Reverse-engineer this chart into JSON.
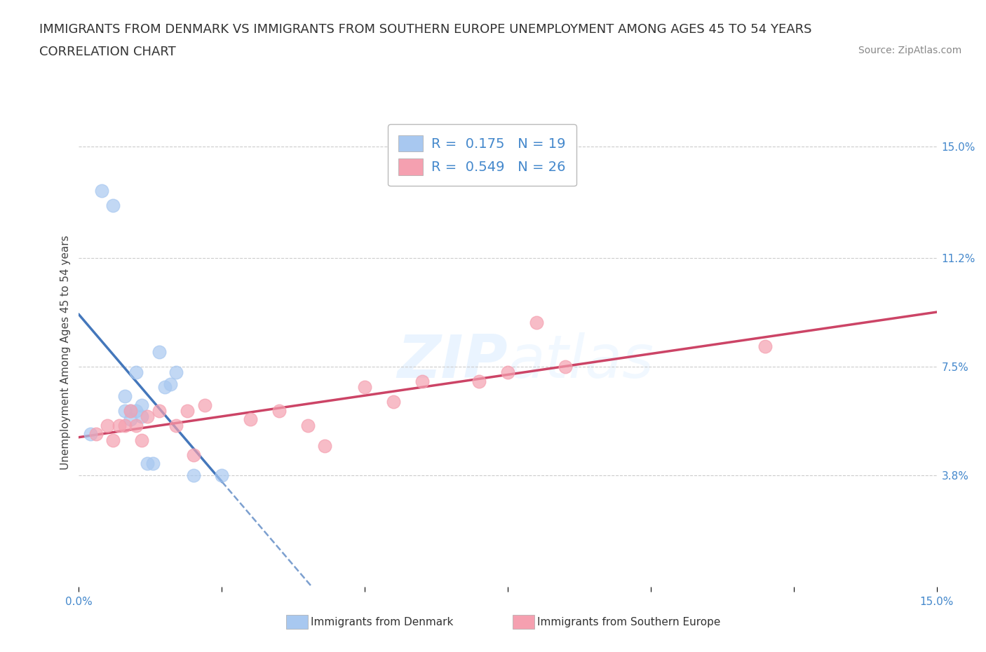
{
  "title_line1": "IMMIGRANTS FROM DENMARK VS IMMIGRANTS FROM SOUTHERN EUROPE UNEMPLOYMENT AMONG AGES 45 TO 54 YEARS",
  "title_line2": "CORRELATION CHART",
  "source": "Source: ZipAtlas.com",
  "ylabel": "Unemployment Among Ages 45 to 54 years",
  "xlim": [
    0,
    0.15
  ],
  "ylim": [
    0,
    0.16
  ],
  "x_ticks": [
    0.0,
    0.025,
    0.05,
    0.075,
    0.1,
    0.125,
    0.15
  ],
  "y_tick_labels_right": [
    "3.8%",
    "7.5%",
    "11.2%",
    "15.0%"
  ],
  "y_tick_vals_right": [
    0.038,
    0.075,
    0.112,
    0.15
  ],
  "legend_entries": [
    {
      "label": "Immigrants from Denmark",
      "R": "0.175",
      "N": "19",
      "color": "#a8c8f0"
    },
    {
      "label": "Immigrants from Southern Europe",
      "R": "0.549",
      "N": "26",
      "color": "#f5a0b0"
    }
  ],
  "denmark_x": [
    0.002,
    0.004,
    0.006,
    0.008,
    0.008,
    0.009,
    0.009,
    0.01,
    0.01,
    0.011,
    0.011,
    0.012,
    0.013,
    0.014,
    0.015,
    0.016,
    0.017,
    0.02,
    0.025
  ],
  "denmark_y": [
    0.052,
    0.135,
    0.13,
    0.06,
    0.065,
    0.057,
    0.06,
    0.06,
    0.073,
    0.062,
    0.058,
    0.042,
    0.042,
    0.08,
    0.068,
    0.069,
    0.073,
    0.038,
    0.038
  ],
  "southern_x": [
    0.003,
    0.005,
    0.006,
    0.007,
    0.008,
    0.009,
    0.01,
    0.011,
    0.012,
    0.014,
    0.017,
    0.019,
    0.02,
    0.022,
    0.03,
    0.035,
    0.04,
    0.043,
    0.05,
    0.055,
    0.06,
    0.07,
    0.075,
    0.08,
    0.085,
    0.12
  ],
  "southern_y": [
    0.052,
    0.055,
    0.05,
    0.055,
    0.055,
    0.06,
    0.055,
    0.05,
    0.058,
    0.06,
    0.055,
    0.06,
    0.045,
    0.062,
    0.057,
    0.06,
    0.055,
    0.048,
    0.068,
    0.063,
    0.07,
    0.07,
    0.073,
    0.09,
    0.075,
    0.082
  ],
  "background_color": "#ffffff",
  "grid_color": "#cccccc",
  "denmark_dot_color": "#a8c8f0",
  "southern_dot_color": "#f5a0b0",
  "denmark_line_color": "#4477bb",
  "southern_line_color": "#cc4466",
  "title_fontsize": 13,
  "axis_label_fontsize": 11,
  "tick_fontsize": 11
}
